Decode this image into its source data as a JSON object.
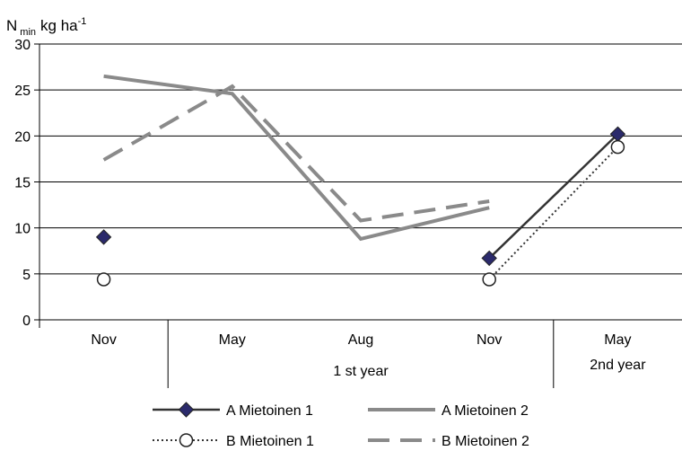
{
  "chart_data": {
    "type": "line",
    "ylabel": {
      "base": "N",
      "sub": "min",
      "unit": "kg ha",
      "sup": "-1"
    },
    "ylim": [
      0,
      30
    ],
    "yticks": [
      0,
      5,
      10,
      15,
      20,
      25,
      30
    ],
    "grid": true,
    "categories": [
      "Nov",
      "May",
      "Aug",
      "Nov",
      "May"
    ],
    "group_labels": [
      "1 st year",
      "2nd year"
    ],
    "series": [
      {
        "name": "A Mietoinen 1",
        "color": "#333333",
        "style": "solid-diamond",
        "values": [
          9,
          null,
          null,
          6.7,
          20.2
        ],
        "connect_from": 3
      },
      {
        "name": "B Mietoinen 1",
        "color": "#333333",
        "style": "dotted-circle",
        "values": [
          4.4,
          null,
          null,
          4.4,
          18.8
        ],
        "connect_from": 3
      },
      {
        "name": "A Mietoinen 2",
        "color": "#8a8a8a",
        "style": "solid-thick",
        "values": [
          26.5,
          24.6,
          8.8,
          12.2,
          null
        ]
      },
      {
        "name": "B Mietoinen 2",
        "color": "#8a8a8a",
        "style": "dashed-thick",
        "values": [
          17.4,
          25.4,
          10.8,
          12.9,
          null
        ]
      }
    ],
    "legend_placement": "bottom"
  }
}
